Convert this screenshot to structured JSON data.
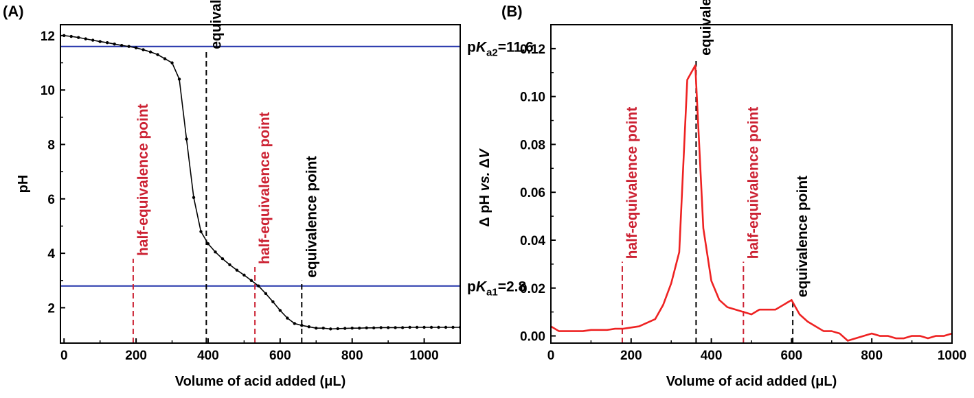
{
  "colors": {
    "half_eq": "#cc2233",
    "eq": "#000000",
    "pka_line": "#2233aa",
    "curve_a": "#000000",
    "curve_b": "#ee2222"
  },
  "chart_data": [
    {
      "type": "line",
      "panel_label": "(A)",
      "xlabel": "Volume of acid added (μL)",
      "ylabel": "pH",
      "xlim": [
        -10,
        1100
      ],
      "ylim": [
        0.7,
        12.4
      ],
      "xticks": [
        0,
        200,
        400,
        600,
        800,
        1000
      ],
      "yticks": [
        2,
        4,
        6,
        8,
        10,
        12
      ],
      "xtick_labels": [
        "0",
        "200",
        "400",
        "600",
        "800",
        "1000"
      ],
      "ytick_labels": [
        "2",
        "4",
        "6",
        "8",
        "10",
        "12"
      ],
      "grid": false,
      "series": [
        {
          "x": [
            0,
            20,
            40,
            60,
            80,
            100,
            120,
            140,
            160,
            180,
            200,
            220,
            240,
            260,
            280,
            300,
            320,
            340,
            360,
            380,
            400,
            420,
            440,
            460,
            480,
            500,
            520,
            540,
            560,
            580,
            600,
            620,
            640,
            660,
            680,
            700,
            720,
            740,
            760,
            780,
            800,
            820,
            840,
            860,
            880,
            900,
            920,
            940,
            960,
            980,
            1000,
            1020,
            1040,
            1060,
            1080,
            1100
          ],
          "y": [
            12.0,
            11.97,
            11.93,
            11.88,
            11.83,
            11.78,
            11.74,
            11.69,
            11.64,
            11.6,
            11.55,
            11.48,
            11.4,
            11.3,
            11.15,
            11.0,
            10.4,
            8.2,
            6.05,
            4.8,
            4.35,
            4.05,
            3.8,
            3.58,
            3.38,
            3.2,
            3.0,
            2.8,
            2.52,
            2.22,
            1.9,
            1.62,
            1.42,
            1.35,
            1.3,
            1.25,
            1.25,
            1.22,
            1.23,
            1.24,
            1.25,
            1.25,
            1.26,
            1.26,
            1.27,
            1.27,
            1.27,
            1.27,
            1.28,
            1.28,
            1.28,
            1.28,
            1.28,
            1.28,
            1.28,
            1.28
          ]
        }
      ],
      "hlines": [
        {
          "y": 11.6,
          "label_main": "pK",
          "label_sub": "a2",
          "label_value": "=11.6"
        },
        {
          "y": 2.8,
          "label_main": "pK",
          "label_sub": "a1",
          "label_value": "=2.8"
        }
      ],
      "vlines": [
        {
          "x": 192,
          "y_top": 3.8,
          "kind": "half",
          "label": "half-equivalence point"
        },
        {
          "x": 395,
          "y_top": 11.4,
          "kind": "eq",
          "label": "equivalence point"
        },
        {
          "x": 530,
          "y_top": 3.5,
          "kind": "half",
          "label": "half-equivalence point"
        },
        {
          "x": 660,
          "y_top": 3.0,
          "kind": "eq",
          "label": "equivalence point"
        }
      ]
    },
    {
      "type": "line",
      "panel_label": "(B)",
      "xlabel": "Volume of acid added (μL)",
      "ylabel_parts": [
        "Δ pH ",
        "vs.",
        " Δ",
        "V"
      ],
      "xlim": [
        0,
        1000
      ],
      "ylim": [
        -0.003,
        0.13
      ],
      "xticks": [
        0,
        200,
        400,
        600,
        800,
        1000
      ],
      "yticks": [
        0.0,
        0.02,
        0.04,
        0.06,
        0.08,
        0.1,
        0.12
      ],
      "xtick_labels": [
        "0",
        "200",
        "400",
        "600",
        "800",
        "1000"
      ],
      "ytick_labels": [
        "0.00",
        "0.02",
        "0.04",
        "0.06",
        "0.08",
        "0.10",
        "0.12"
      ],
      "grid": false,
      "series": [
        {
          "x": [
            0,
            20,
            40,
            60,
            80,
            100,
            120,
            140,
            160,
            180,
            200,
            220,
            240,
            260,
            280,
            300,
            320,
            340,
            360,
            380,
            400,
            420,
            440,
            460,
            480,
            500,
            520,
            540,
            560,
            580,
            600,
            620,
            640,
            660,
            680,
            700,
            720,
            740,
            760,
            780,
            800,
            820,
            840,
            860,
            880,
            900,
            920,
            940,
            960,
            980,
            1000
          ],
          "y": [
            0.004,
            0.002,
            0.002,
            0.002,
            0.002,
            0.0025,
            0.0025,
            0.0025,
            0.003,
            0.003,
            0.0035,
            0.004,
            0.0055,
            0.007,
            0.013,
            0.022,
            0.035,
            0.107,
            0.113,
            0.045,
            0.023,
            0.015,
            0.012,
            0.011,
            0.01,
            0.009,
            0.011,
            0.011,
            0.011,
            0.013,
            0.015,
            0.009,
            0.006,
            0.004,
            0.002,
            0.002,
            0.001,
            -0.002,
            -0.001,
            0.0,
            0.001,
            0.0,
            0.0,
            -0.001,
            -0.001,
            0.0,
            0.0,
            -0.001,
            0.0,
            0.0,
            0.001
          ]
        }
      ],
      "vlines": [
        {
          "x": 178,
          "y_top": 0.031,
          "kind": "half",
          "label": "half-equivalence point"
        },
        {
          "x": 362,
          "y_top": 0.116,
          "kind": "eq",
          "label": "equivalence point"
        },
        {
          "x": 480,
          "y_top": 0.031,
          "kind": "half",
          "label": "half-equivalence point"
        },
        {
          "x": 603,
          "y_top": 0.015,
          "kind": "eq",
          "label": "equivalence point"
        }
      ]
    }
  ]
}
